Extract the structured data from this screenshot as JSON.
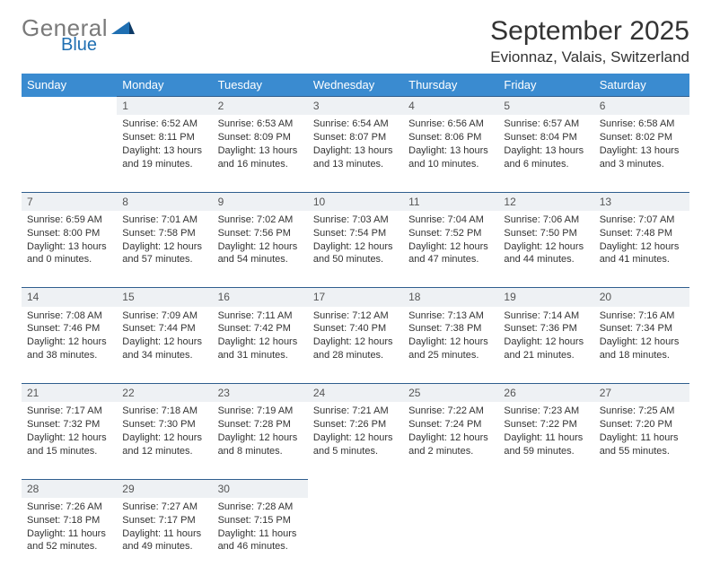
{
  "logo": {
    "text1": "General",
    "text2": "Blue",
    "color_gray": "#7a7a7a",
    "color_blue": "#1f6fb2"
  },
  "title": "September 2025",
  "location": "Evionnaz, Valais, Switzerland",
  "header_bg": "#3a8bd0",
  "daynum_bg": "#eef1f4",
  "daynum_border": "#2f5e8e",
  "weekdays": [
    "Sunday",
    "Monday",
    "Tuesday",
    "Wednesday",
    "Thursday",
    "Friday",
    "Saturday"
  ],
  "weeks": [
    {
      "nums": [
        "",
        "1",
        "2",
        "3",
        "4",
        "5",
        "6"
      ],
      "cells": [
        null,
        {
          "sr": "Sunrise: 6:52 AM",
          "ss": "Sunset: 8:11 PM",
          "d1": "Daylight: 13 hours",
          "d2": "and 19 minutes."
        },
        {
          "sr": "Sunrise: 6:53 AM",
          "ss": "Sunset: 8:09 PM",
          "d1": "Daylight: 13 hours",
          "d2": "and 16 minutes."
        },
        {
          "sr": "Sunrise: 6:54 AM",
          "ss": "Sunset: 8:07 PM",
          "d1": "Daylight: 13 hours",
          "d2": "and 13 minutes."
        },
        {
          "sr": "Sunrise: 6:56 AM",
          "ss": "Sunset: 8:06 PM",
          "d1": "Daylight: 13 hours",
          "d2": "and 10 minutes."
        },
        {
          "sr": "Sunrise: 6:57 AM",
          "ss": "Sunset: 8:04 PM",
          "d1": "Daylight: 13 hours",
          "d2": "and 6 minutes."
        },
        {
          "sr": "Sunrise: 6:58 AM",
          "ss": "Sunset: 8:02 PM",
          "d1": "Daylight: 13 hours",
          "d2": "and 3 minutes."
        }
      ]
    },
    {
      "nums": [
        "7",
        "8",
        "9",
        "10",
        "11",
        "12",
        "13"
      ],
      "cells": [
        {
          "sr": "Sunrise: 6:59 AM",
          "ss": "Sunset: 8:00 PM",
          "d1": "Daylight: 13 hours",
          "d2": "and 0 minutes."
        },
        {
          "sr": "Sunrise: 7:01 AM",
          "ss": "Sunset: 7:58 PM",
          "d1": "Daylight: 12 hours",
          "d2": "and 57 minutes."
        },
        {
          "sr": "Sunrise: 7:02 AM",
          "ss": "Sunset: 7:56 PM",
          "d1": "Daylight: 12 hours",
          "d2": "and 54 minutes."
        },
        {
          "sr": "Sunrise: 7:03 AM",
          "ss": "Sunset: 7:54 PM",
          "d1": "Daylight: 12 hours",
          "d2": "and 50 minutes."
        },
        {
          "sr": "Sunrise: 7:04 AM",
          "ss": "Sunset: 7:52 PM",
          "d1": "Daylight: 12 hours",
          "d2": "and 47 minutes."
        },
        {
          "sr": "Sunrise: 7:06 AM",
          "ss": "Sunset: 7:50 PM",
          "d1": "Daylight: 12 hours",
          "d2": "and 44 minutes."
        },
        {
          "sr": "Sunrise: 7:07 AM",
          "ss": "Sunset: 7:48 PM",
          "d1": "Daylight: 12 hours",
          "d2": "and 41 minutes."
        }
      ]
    },
    {
      "nums": [
        "14",
        "15",
        "16",
        "17",
        "18",
        "19",
        "20"
      ],
      "cells": [
        {
          "sr": "Sunrise: 7:08 AM",
          "ss": "Sunset: 7:46 PM",
          "d1": "Daylight: 12 hours",
          "d2": "and 38 minutes."
        },
        {
          "sr": "Sunrise: 7:09 AM",
          "ss": "Sunset: 7:44 PM",
          "d1": "Daylight: 12 hours",
          "d2": "and 34 minutes."
        },
        {
          "sr": "Sunrise: 7:11 AM",
          "ss": "Sunset: 7:42 PM",
          "d1": "Daylight: 12 hours",
          "d2": "and 31 minutes."
        },
        {
          "sr": "Sunrise: 7:12 AM",
          "ss": "Sunset: 7:40 PM",
          "d1": "Daylight: 12 hours",
          "d2": "and 28 minutes."
        },
        {
          "sr": "Sunrise: 7:13 AM",
          "ss": "Sunset: 7:38 PM",
          "d1": "Daylight: 12 hours",
          "d2": "and 25 minutes."
        },
        {
          "sr": "Sunrise: 7:14 AM",
          "ss": "Sunset: 7:36 PM",
          "d1": "Daylight: 12 hours",
          "d2": "and 21 minutes."
        },
        {
          "sr": "Sunrise: 7:16 AM",
          "ss": "Sunset: 7:34 PM",
          "d1": "Daylight: 12 hours",
          "d2": "and 18 minutes."
        }
      ]
    },
    {
      "nums": [
        "21",
        "22",
        "23",
        "24",
        "25",
        "26",
        "27"
      ],
      "cells": [
        {
          "sr": "Sunrise: 7:17 AM",
          "ss": "Sunset: 7:32 PM",
          "d1": "Daylight: 12 hours",
          "d2": "and 15 minutes."
        },
        {
          "sr": "Sunrise: 7:18 AM",
          "ss": "Sunset: 7:30 PM",
          "d1": "Daylight: 12 hours",
          "d2": "and 12 minutes."
        },
        {
          "sr": "Sunrise: 7:19 AM",
          "ss": "Sunset: 7:28 PM",
          "d1": "Daylight: 12 hours",
          "d2": "and 8 minutes."
        },
        {
          "sr": "Sunrise: 7:21 AM",
          "ss": "Sunset: 7:26 PM",
          "d1": "Daylight: 12 hours",
          "d2": "and 5 minutes."
        },
        {
          "sr": "Sunrise: 7:22 AM",
          "ss": "Sunset: 7:24 PM",
          "d1": "Daylight: 12 hours",
          "d2": "and 2 minutes."
        },
        {
          "sr": "Sunrise: 7:23 AM",
          "ss": "Sunset: 7:22 PM",
          "d1": "Daylight: 11 hours",
          "d2": "and 59 minutes."
        },
        {
          "sr": "Sunrise: 7:25 AM",
          "ss": "Sunset: 7:20 PM",
          "d1": "Daylight: 11 hours",
          "d2": "and 55 minutes."
        }
      ]
    },
    {
      "nums": [
        "28",
        "29",
        "30",
        "",
        "",
        "",
        ""
      ],
      "cells": [
        {
          "sr": "Sunrise: 7:26 AM",
          "ss": "Sunset: 7:18 PM",
          "d1": "Daylight: 11 hours",
          "d2": "and 52 minutes."
        },
        {
          "sr": "Sunrise: 7:27 AM",
          "ss": "Sunset: 7:17 PM",
          "d1": "Daylight: 11 hours",
          "d2": "and 49 minutes."
        },
        {
          "sr": "Sunrise: 7:28 AM",
          "ss": "Sunset: 7:15 PM",
          "d1": "Daylight: 11 hours",
          "d2": "and 46 minutes."
        },
        null,
        null,
        null,
        null
      ]
    }
  ]
}
